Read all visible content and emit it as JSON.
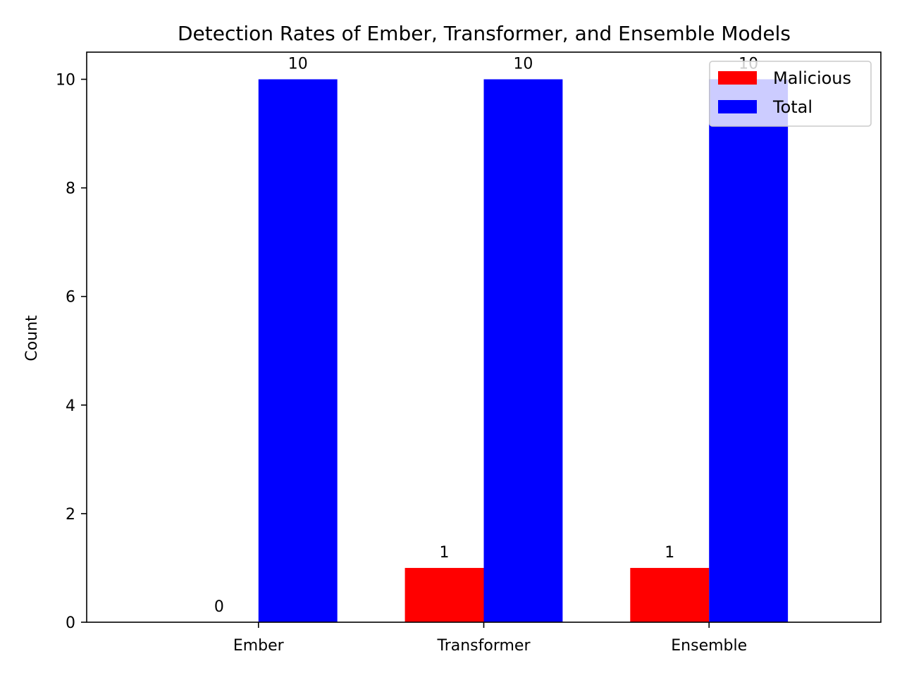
{
  "chart_data": {
    "type": "bar",
    "title": "Detection Rates of Ember, Transformer, and Ensemble Models",
    "xlabel": "",
    "ylabel": "Count",
    "categories": [
      "Ember",
      "Transformer",
      "Ensemble"
    ],
    "series": [
      {
        "name": "Malicious",
        "values": [
          0,
          1,
          1
        ],
        "color": "#ff0000"
      },
      {
        "name": "Total",
        "values": [
          10,
          10,
          10
        ],
        "color": "#0000ff"
      }
    ],
    "ylim": [
      0,
      10.5
    ],
    "yticks": [
      0,
      2,
      4,
      6,
      8,
      10
    ],
    "legend": "top-right",
    "grid": false
  }
}
